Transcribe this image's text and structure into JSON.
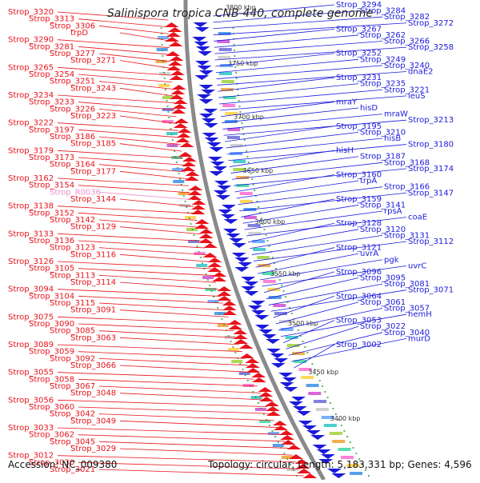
{
  "title": "Salinispora tropica CNB-440, complete genome",
  "accession": "Accession: NC_009380",
  "summary": "Topology: circular; Length: 5,183,331 bp; Genes: 4,596",
  "colors": {
    "left": "#e8131b",
    "right": "#1b1bdc",
    "pseudo": "#f090c8",
    "backbone": "#8a8a8a"
  },
  "kbp_ticks": [
    "3800 kbp",
    "3750 kbp",
    "3700 kbp",
    "3650 kbp",
    "3600 kbp",
    "3550 kbp",
    "3500 kbp",
    "3450 kbp",
    "3400 kbp"
  ],
  "left_labels": [
    {
      "text": "Strop_3320"
    },
    {
      "text": "Strop_3313"
    },
    {
      "text": "Strop_3306"
    },
    {
      "text": "trpD"
    },
    {
      "text": "Strop_3290"
    },
    {
      "text": "Strop_3281"
    },
    {
      "text": "Strop_3277"
    },
    {
      "text": "Strop_3271"
    },
    {
      "text": "Strop_3265"
    },
    {
      "text": "Strop_3254"
    },
    {
      "text": "Strop_3251"
    },
    {
      "text": "Strop_3243"
    },
    {
      "text": "Strop_3234"
    },
    {
      "text": "Strop_3233"
    },
    {
      "text": "Strop_3226"
    },
    {
      "text": "Strop_3223"
    },
    {
      "text": "Strop_3222"
    },
    {
      "text": "Strop_3197"
    },
    {
      "text": "Strop_3186"
    },
    {
      "text": "Strop_3185"
    },
    {
      "text": "Strop_3179"
    },
    {
      "text": "Strop_3173"
    },
    {
      "text": "Strop_3164"
    },
    {
      "text": "Strop_3177"
    },
    {
      "text": "Strop_3162"
    },
    {
      "text": "Strop_3154"
    },
    {
      "text": "Strop_R0036",
      "pseudo": true
    },
    {
      "text": "Strop_3144"
    },
    {
      "text": "Strop_3138"
    },
    {
      "text": "Strop_3152"
    },
    {
      "text": "Strop_3142"
    },
    {
      "text": "Strop_3129"
    },
    {
      "text": "Strop_3133"
    },
    {
      "text": "Strop_3136"
    },
    {
      "text": "Strop_3123"
    },
    {
      "text": "Strop_3116"
    },
    {
      "text": "Strop_3126"
    },
    {
      "text": "Strop_3105"
    },
    {
      "text": "Strop_3113"
    },
    {
      "text": "Strop_3114"
    },
    {
      "text": "Strop_3094"
    },
    {
      "text": "Strop_3104"
    },
    {
      "text": "Strop_3115"
    },
    {
      "text": "Strop_3091"
    },
    {
      "text": "Strop_3075"
    },
    {
      "text": "Strop_3090"
    },
    {
      "text": "Strop_3085"
    },
    {
      "text": "Strop_3063"
    },
    {
      "text": "Strop_3089"
    },
    {
      "text": "Strop_3059"
    },
    {
      "text": "Strop_3092"
    },
    {
      "text": "Strop_3066"
    },
    {
      "text": "Strop_3055"
    },
    {
      "text": "Strop_3058"
    },
    {
      "text": "Strop_3067"
    },
    {
      "text": "Strop_3048"
    },
    {
      "text": "Strop_3056"
    },
    {
      "text": "Strop_3060"
    },
    {
      "text": "Strop_3042"
    },
    {
      "text": "Strop_3049"
    },
    {
      "text": "Strop_3033"
    },
    {
      "text": "Strop_3062"
    },
    {
      "text": "Strop_3045"
    },
    {
      "text": "Strop_3029"
    },
    {
      "text": "Strop_3012"
    },
    {
      "text": "Strop_3030"
    },
    {
      "text": "Strop_3021"
    }
  ],
  "right_labels": [
    {
      "text": "Strop_3294"
    },
    {
      "text": "Strop_3284"
    },
    {
      "text": "Strop_3282"
    },
    {
      "text": "Strop_3272"
    },
    {
      "text": "Strop_3267"
    },
    {
      "text": "Strop_3262"
    },
    {
      "text": "Strop_3266"
    },
    {
      "text": "Strop_3258"
    },
    {
      "text": "Strop_3252"
    },
    {
      "text": "Strop_3249"
    },
    {
      "text": "Strop_3240"
    },
    {
      "text": "dnaE2"
    },
    {
      "text": "Strop_3231"
    },
    {
      "text": "Strop_3235"
    },
    {
      "text": "Strop_3221"
    },
    {
      "text": "leuS"
    },
    {
      "text": "mraY"
    },
    {
      "text": "hisD"
    },
    {
      "text": "mraW"
    },
    {
      "text": "Strop_3213"
    },
    {
      "text": "Strop_3195"
    },
    {
      "text": "Strop_3210"
    },
    {
      "text": "hisB"
    },
    {
      "text": "Strop_3180"
    },
    {
      "text": "hisH"
    },
    {
      "text": "Strop_3187"
    },
    {
      "text": "Strop_3168"
    },
    {
      "text": "Strop_3174"
    },
    {
      "text": "Strop_3160"
    },
    {
      "text": "trpA"
    },
    {
      "text": "Strop_3166"
    },
    {
      "text": "Strop_3147"
    },
    {
      "text": "Strop_3159"
    },
    {
      "text": "Strop_3141"
    },
    {
      "text": "rpsA"
    },
    {
      "text": "coaE"
    },
    {
      "text": "Strop_3128"
    },
    {
      "text": "Strop_3120"
    },
    {
      "text": "Strop_3131"
    },
    {
      "text": "Strop_3112"
    },
    {
      "text": "Strop_3121"
    },
    {
      "text": "uvrA"
    },
    {
      "text": "pgk"
    },
    {
      "text": "uvrC"
    },
    {
      "text": "Strop_3096"
    },
    {
      "text": "Strop_3095"
    },
    {
      "text": "Strop_3081"
    },
    {
      "text": "Strop_3071"
    },
    {
      "text": "Strop_3064"
    },
    {
      "text": "Strop_3061"
    },
    {
      "text": "Strop_3057"
    },
    {
      "text": "hemH"
    },
    {
      "text": "Strop_3053"
    },
    {
      "text": "Strop_3022"
    },
    {
      "text": "Strop_3040"
    },
    {
      "text": "murD"
    },
    {
      "text": "Strop_3002"
    }
  ]
}
